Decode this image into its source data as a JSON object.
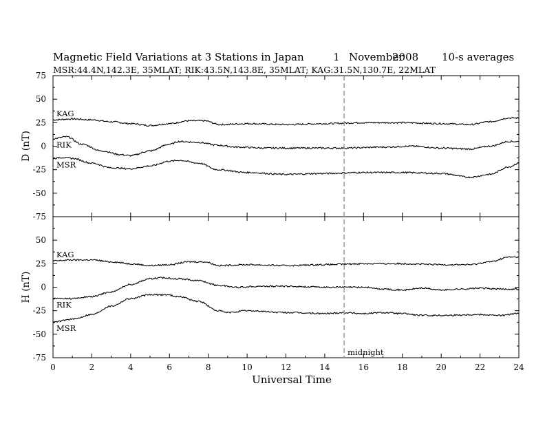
{
  "header": {
    "title": "Magnetic Field Variations at 3 Stations in Japan",
    "day": "1",
    "month": "November",
    "year": "2008",
    "averages": "10-s averages",
    "stations_line": "MSR:44.4N,142.3E, 35MLAT;  RIK:43.5N,143.8E, 35MLAT;  KAG:31.5N,130.7E, 22MLAT"
  },
  "chart_data": [
    {
      "type": "line",
      "ylabel": "D (nT)",
      "ylim": [
        -75,
        75
      ],
      "yticks": [
        "75",
        "50",
        "25",
        "0",
        "-25",
        "-50",
        "-75"
      ],
      "yticks_values": [
        75,
        50,
        25,
        0,
        -25,
        -50,
        -75
      ],
      "xlim": [
        0,
        24
      ],
      "series": [
        {
          "name": "KAG",
          "x": [
            0,
            1,
            2,
            3,
            4,
            5,
            6,
            7,
            7.8,
            8.6,
            10,
            12,
            14,
            16,
            18,
            20,
            21.5,
            22.5,
            23.5,
            24
          ],
          "y": [
            28,
            29,
            28,
            26,
            24,
            22,
            24,
            27,
            27,
            23,
            24,
            23,
            24,
            25,
            25,
            24,
            23,
            26,
            30,
            30
          ]
        },
        {
          "name": "RIK",
          "x": [
            0,
            0.7,
            1.5,
            2.5,
            3.5,
            4,
            5,
            6,
            6.5,
            7.5,
            8.5,
            9.5,
            11,
            13,
            15,
            17,
            18.5,
            20,
            21.5,
            22.5,
            23.5,
            24
          ],
          "y": [
            8,
            10,
            2,
            -5,
            -9,
            -10,
            -5,
            2,
            5,
            4,
            1,
            -1,
            -2,
            -2,
            -2,
            -1,
            0,
            -2,
            -3,
            0,
            5,
            5
          ]
        },
        {
          "name": "MSR",
          "x": [
            0,
            0.5,
            1,
            2,
            3,
            4,
            5,
            6,
            6.5,
            7.5,
            8.5,
            10,
            12,
            14,
            16,
            18,
            20,
            21.5,
            22.5,
            23.5,
            24
          ],
          "y": [
            -13,
            -12,
            -13,
            -18,
            -23,
            -24,
            -21,
            -16,
            -15,
            -18,
            -25,
            -28,
            -30,
            -29,
            -28,
            -28,
            -29,
            -33,
            -30,
            -22,
            -18
          ]
        }
      ]
    },
    {
      "type": "line",
      "ylabel": "H (nT)",
      "xlabel": "Universal Time",
      "ylim": [
        -75,
        75
      ],
      "yticks": [
        "50",
        "25",
        "0",
        "-25",
        "-50",
        "-75"
      ],
      "yticks_values": [
        50,
        25,
        0,
        -25,
        -50,
        -75
      ],
      "xlim": [
        0,
        24
      ],
      "xticks": [
        "0",
        "2",
        "4",
        "6",
        "8",
        "10",
        "12",
        "14",
        "16",
        "18",
        "20",
        "22",
        "24"
      ],
      "xticks_values": [
        0,
        2,
        4,
        6,
        8,
        10,
        12,
        14,
        16,
        18,
        20,
        22,
        24
      ],
      "series": [
        {
          "name": "KAG",
          "x": [
            0,
            1,
            2,
            3,
            4,
            5,
            6,
            7,
            7.8,
            8.6,
            10,
            12,
            14,
            16,
            18,
            20,
            21.5,
            22.5,
            23.5,
            24
          ],
          "y": [
            28,
            29,
            29,
            27,
            25,
            23,
            24,
            27,
            27,
            23,
            24,
            23,
            24,
            25,
            25,
            24,
            24,
            27,
            32,
            32
          ]
        },
        {
          "name": "RIK",
          "x": [
            0,
            1,
            2,
            3,
            4,
            5,
            5.6,
            6.5,
            7.5,
            8.5,
            9.5,
            10.5,
            12,
            14,
            16,
            17,
            18,
            19,
            20,
            21,
            22,
            23,
            24
          ],
          "y": [
            -12,
            -12,
            -10,
            -5,
            3,
            9,
            10,
            9,
            7,
            2,
            0,
            1,
            1,
            0,
            0,
            -2,
            -3,
            -1,
            -3,
            -2,
            -1,
            -2,
            -2
          ]
        },
        {
          "name": "MSR",
          "x": [
            0,
            1,
            2,
            3,
            4,
            5,
            5.8,
            6.5,
            7.5,
            8.5,
            9,
            10,
            12,
            14,
            15,
            16,
            17,
            18,
            19,
            20,
            22,
            23,
            24
          ],
          "y": [
            -37,
            -34,
            -29,
            -20,
            -12,
            -8,
            -8,
            -10,
            -15,
            -25,
            -27,
            -25,
            -27,
            -28,
            -27,
            -28,
            -27,
            -28,
            -30,
            -30,
            -29,
            -30,
            -28
          ]
        }
      ],
      "annotation": {
        "x": 15,
        "text": "midnight"
      }
    }
  ]
}
